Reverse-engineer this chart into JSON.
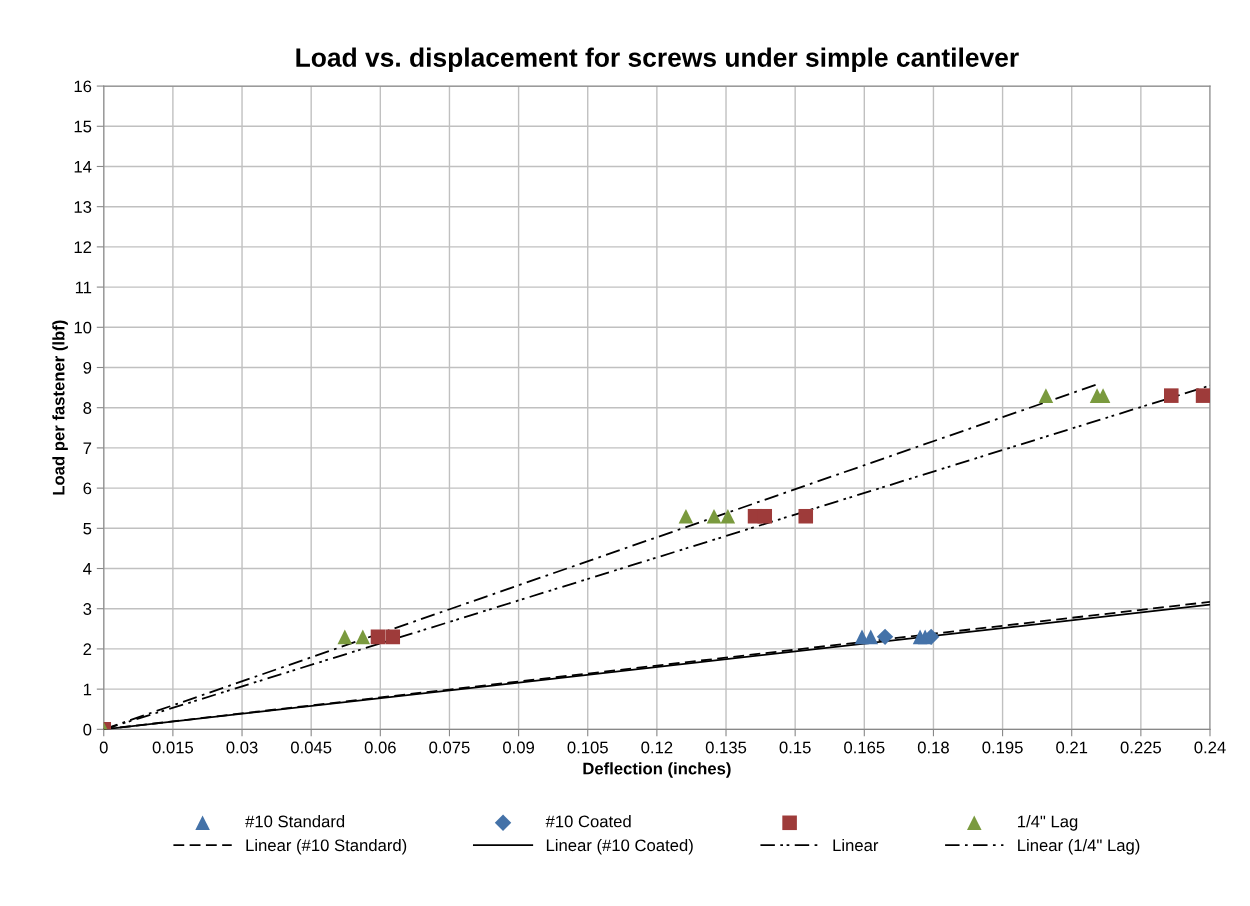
{
  "chart_data": {
    "type": "scatter",
    "title": "Load vs. displacement for screws under simple cantilever",
    "xlabel": "Deflection (inches)",
    "ylabel": "Load per fastener (lbf)",
    "xlim": [
      0,
      0.24
    ],
    "xticks": [
      0,
      0.015,
      0.03,
      0.045,
      0.06,
      0.075,
      0.09,
      0.105,
      0.12,
      0.135,
      0.15,
      0.165,
      0.18,
      0.195,
      0.21,
      0.225,
      0.24
    ],
    "ylim": [
      0,
      16
    ],
    "yticks": [
      0,
      1,
      2,
      3,
      4,
      5,
      6,
      7,
      8,
      9,
      10,
      11,
      12,
      13,
      14,
      15,
      16
    ],
    "grid": true,
    "legend": "bottom",
    "series": [
      {
        "name": "#10 Standard",
        "marker": "triangle",
        "color": "#4472a8",
        "x": [
          0.1645,
          0.1664,
          0.1771,
          0.1782
        ],
        "values": [
          2.3,
          2.3,
          2.3,
          2.3
        ]
      },
      {
        "name": "Linear (#10 Standard)",
        "type": "line",
        "line_style": "dashed",
        "color": "#000000",
        "x": [
          0,
          0.24
        ],
        "values": [
          0,
          3.17
        ]
      },
      {
        "name": "#10 Coated",
        "marker": "diamond",
        "color": "#4472a8",
        "x": [
          0.1695,
          0.1795
        ],
        "values": [
          2.3,
          2.3
        ]
      },
      {
        "name": "Linear (#10 Coated)",
        "type": "line",
        "line_style": "solid",
        "color": "#000000",
        "x": [
          0,
          0.24
        ],
        "values": [
          0,
          3.1
        ]
      },
      {
        "name": null,
        "marker": "square",
        "color": "#9e3b3a",
        "x": [
          0,
          0.0595,
          0.0627,
          0.1413,
          0.1434,
          0.1523,
          0.2316,
          0.2385
        ],
        "values": [
          0,
          2.3,
          2.3,
          5.3,
          5.3,
          5.3,
          8.3,
          8.3
        ]
      },
      {
        "name": "Linear",
        "type": "line",
        "line_style": "dashdotdot",
        "color": "#000000",
        "x": [
          0,
          0.24
        ],
        "values": [
          0,
          8.55
        ]
      },
      {
        "name": "1/4\" Lag",
        "marker": "triangle",
        "color": "#7a9a3e",
        "x": [
          0,
          0.0523,
          0.0562,
          0.1263,
          0.1324,
          0.1354,
          0.2044,
          0.2155,
          0.2168
        ],
        "values": [
          0,
          2.3,
          2.3,
          5.3,
          5.3,
          5.3,
          8.3,
          8.3,
          8.3
        ]
      },
      {
        "name": "Linear (1/4\" Lag)",
        "type": "line",
        "line_style": "dashdot",
        "color": "#000000",
        "x": [
          0,
          0.216
        ],
        "values": [
          0,
          8.6
        ]
      }
    ]
  }
}
